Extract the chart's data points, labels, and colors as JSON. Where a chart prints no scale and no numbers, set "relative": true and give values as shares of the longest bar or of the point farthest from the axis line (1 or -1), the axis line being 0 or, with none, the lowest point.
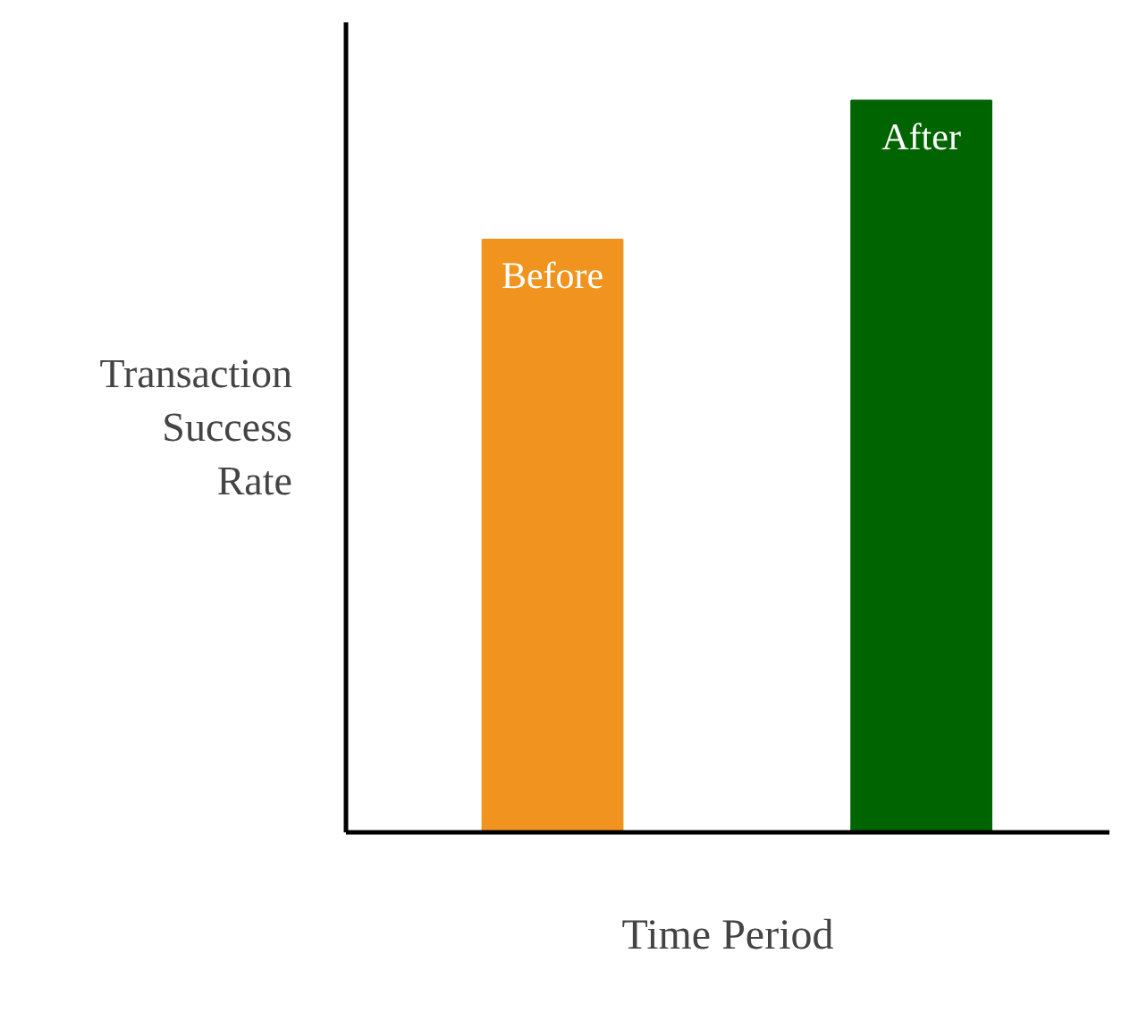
{
  "chart_data": {
    "type": "bar",
    "relative": true,
    "categories": [
      "Before",
      "After"
    ],
    "values": [
      0.81,
      1
    ],
    "colors": [
      "#f0941f",
      "#006400"
    ],
    "ylabel": "Transaction Success Rate",
    "xlabel": "Time Period",
    "grid": false
  }
}
